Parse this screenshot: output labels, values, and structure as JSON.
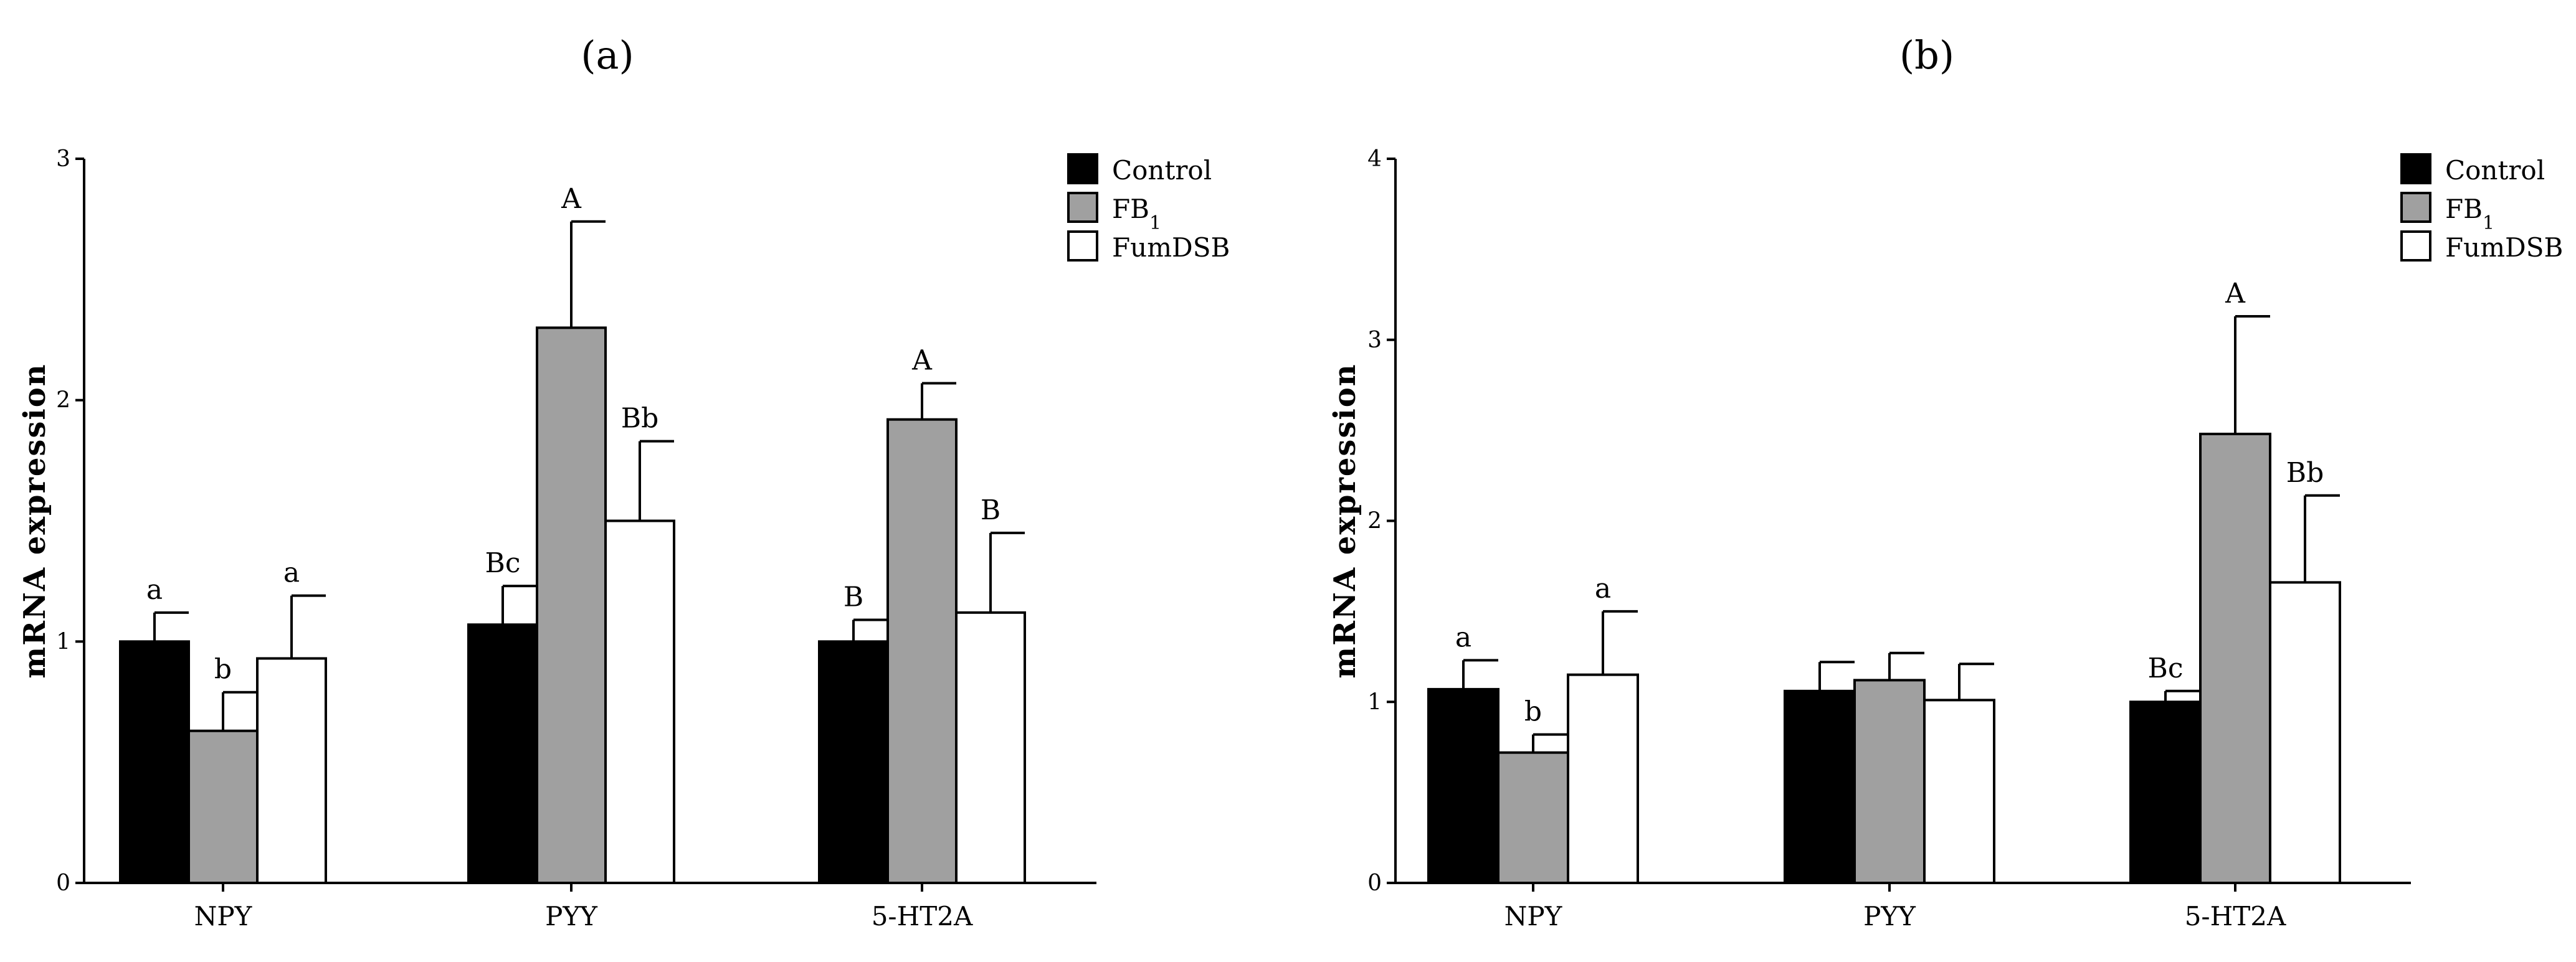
{
  "chart_data": [
    {
      "type": "bar",
      "title": "(a)",
      "xlabel": "",
      "ylabel": "mRNA expression",
      "ylim": [
        0,
        3
      ],
      "yticks": [
        0,
        1,
        2,
        3
      ],
      "categories": [
        "NPY",
        "PYY",
        "5-HT2A"
      ],
      "series": [
        {
          "name": "Control",
          "color": "#000000",
          "values": [
            1.0,
            1.07,
            1.0
          ],
          "errors": [
            0.12,
            0.16,
            0.09
          ],
          "labels": [
            "a",
            "Bc",
            "B"
          ]
        },
        {
          "name": "FB1",
          "color": "#a0a0a0",
          "values": [
            0.63,
            2.3,
            1.92
          ],
          "errors": [
            0.16,
            0.44,
            0.15
          ],
          "labels": [
            "b",
            "A",
            "A"
          ]
        },
        {
          "name": "FumDSB",
          "color": "#ffffff",
          "values": [
            0.93,
            1.5,
            1.12
          ],
          "errors": [
            0.26,
            0.33,
            0.33
          ],
          "labels": [
            "a",
            "Bb",
            "B"
          ]
        }
      ],
      "legend": {
        "position": "top-right",
        "entries": [
          "Control",
          "FB",
          "FumDSB"
        ],
        "subscripts": [
          "",
          "1",
          ""
        ]
      }
    },
    {
      "type": "bar",
      "title": "(b)",
      "xlabel": "",
      "ylabel": "mRNA expression",
      "ylim": [
        0,
        4
      ],
      "yticks": [
        0,
        1,
        2,
        3,
        4
      ],
      "categories": [
        "NPY",
        "PYY",
        "5-HT2A"
      ],
      "series": [
        {
          "name": "Control",
          "color": "#000000",
          "values": [
            1.07,
            1.06,
            1.0
          ],
          "errors": [
            0.16,
            0.16,
            0.06
          ],
          "labels": [
            "a",
            "",
            "Bc"
          ]
        },
        {
          "name": "FB1",
          "color": "#a0a0a0",
          "values": [
            0.72,
            1.12,
            2.48
          ],
          "errors": [
            0.1,
            0.15,
            0.65
          ],
          "labels": [
            "b",
            "",
            "A"
          ]
        },
        {
          "name": "FumDSB",
          "color": "#ffffff",
          "values": [
            1.15,
            1.01,
            1.66
          ],
          "errors": [
            0.35,
            0.2,
            0.48
          ],
          "labels": [
            "a",
            "",
            "Bb"
          ]
        }
      ],
      "legend": {
        "position": "top-right",
        "entries": [
          "Control",
          "FB",
          "FumDSB"
        ],
        "subscripts": [
          "",
          "1",
          ""
        ]
      }
    }
  ]
}
